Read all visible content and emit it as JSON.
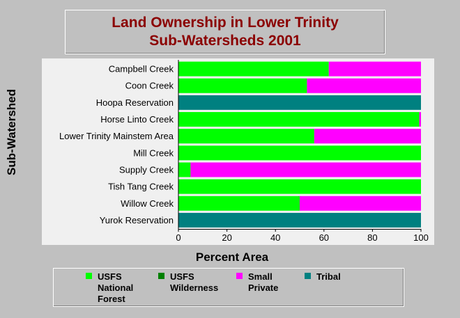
{
  "title_lines": [
    "Land Ownership in Lower Trinity",
    "Sub-Watersheds 2001"
  ],
  "chart_data": {
    "type": "bar",
    "orientation": "horizontal",
    "stacked": true,
    "title": "Land Ownership in Lower Trinity Sub-Watersheds 2001",
    "xlabel": "Percent Area",
    "ylabel": "Sub-Watershed",
    "xlim": [
      0,
      100
    ],
    "xticks": [
      "0",
      "20",
      "40",
      "60",
      "80",
      "100"
    ],
    "categories": [
      "Campbell Creek",
      "Coon Creek",
      "Hoopa Reservation",
      "Horse Linto Creek",
      "Lower Trinity Mainstem Area",
      "Mill Creek",
      "Supply Creek",
      "Tish Tang Creek",
      "Willow Creek",
      "Yurok Reservation"
    ],
    "series": [
      {
        "name": "USFS National Forest",
        "color": "#00ff00",
        "values": [
          62,
          53,
          0,
          99.3,
          56,
          100,
          5,
          100,
          50,
          0
        ]
      },
      {
        "name": "USFS Wilderness",
        "color": "#008000",
        "values": [
          0,
          0,
          0,
          0,
          0,
          0,
          0,
          0,
          0,
          0
        ]
      },
      {
        "name": "Small Private",
        "color": "#ff00ff",
        "values": [
          38,
          47,
          0,
          0.7,
          44,
          0,
          95,
          0,
          50,
          0
        ]
      },
      {
        "name": "Tribal",
        "color": "#008080",
        "values": [
          0,
          0,
          100,
          0,
          0,
          0,
          0,
          0,
          0,
          100
        ]
      }
    ],
    "legend_position": "bottom",
    "grid": false
  }
}
